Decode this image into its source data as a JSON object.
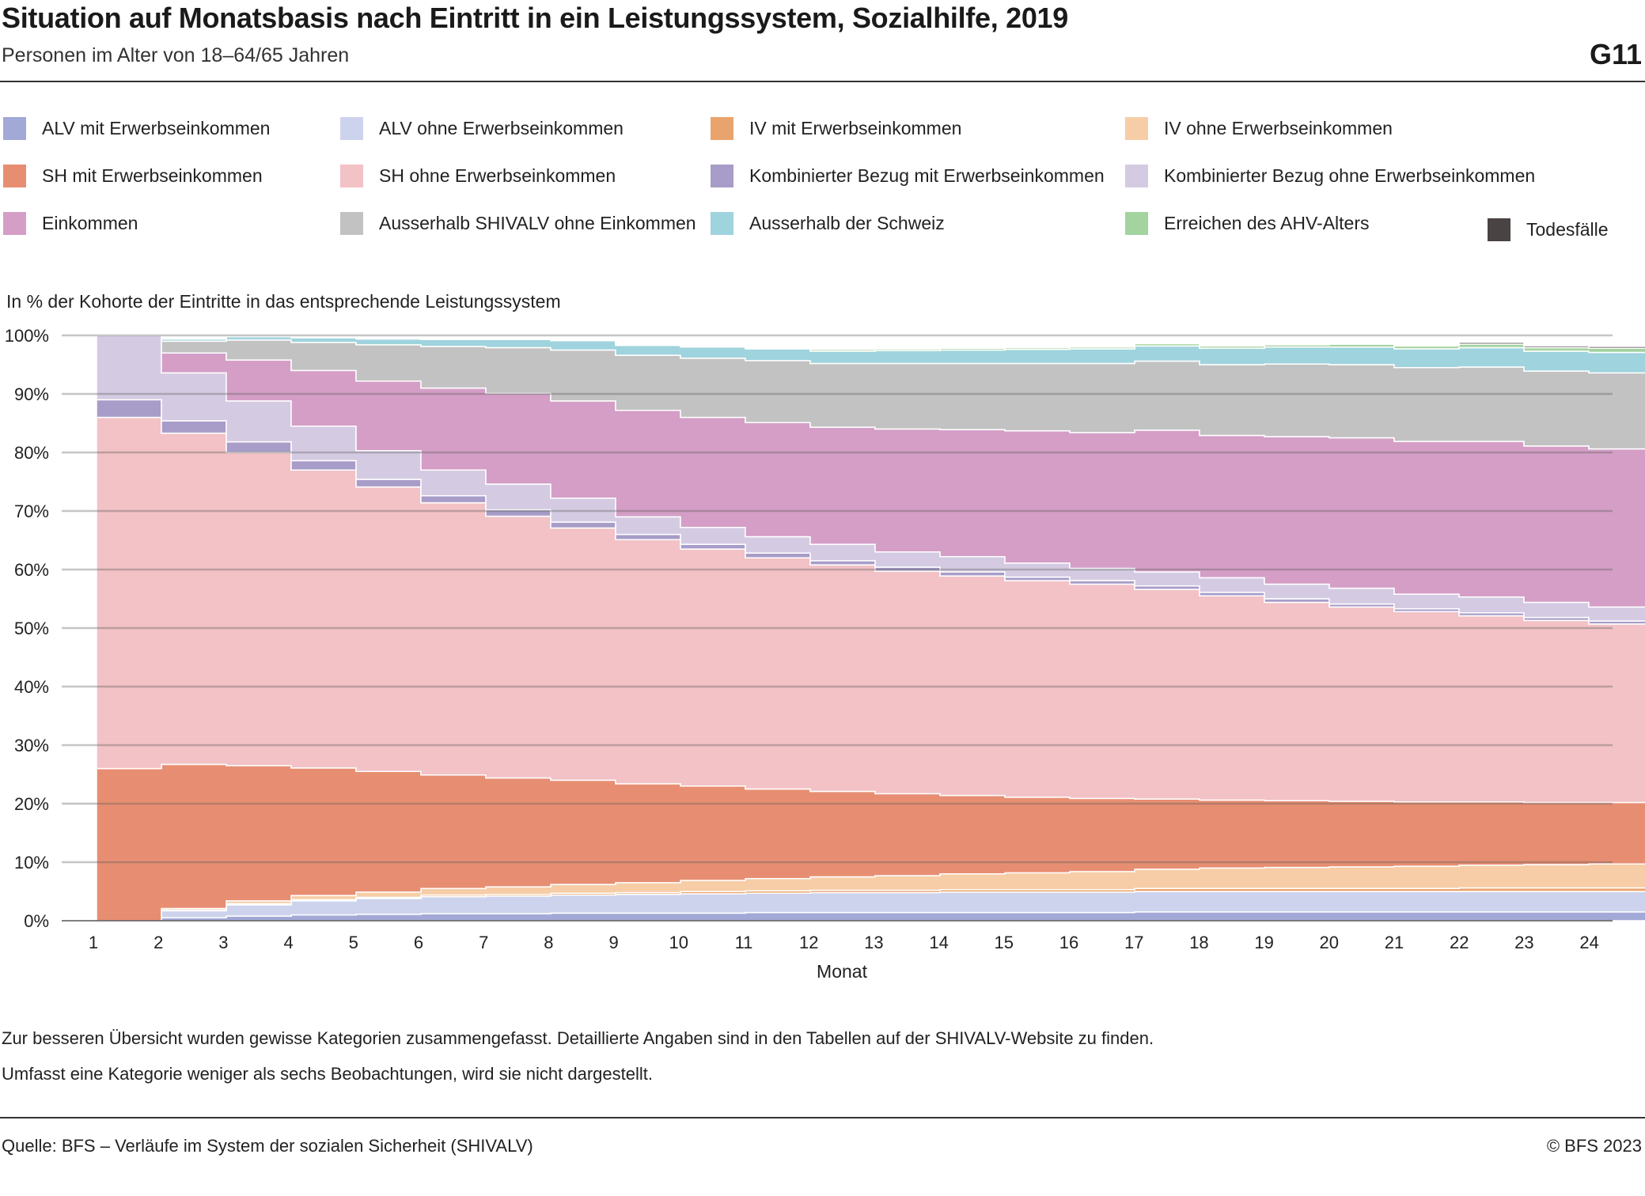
{
  "header": {
    "title": "Situation auf Monatsbasis nach Eintritt in ein Leistungssystem, Sozialhilfe, 2019",
    "subtitle": "Personen im Alter von 18–64/65 Jahren",
    "graphic_id": "G11"
  },
  "legend": [
    {
      "label": "ALV mit Erwerbseinkommen",
      "color": "#a3a9d6"
    },
    {
      "label": "ALV ohne Erwerbseinkommen",
      "color": "#cdd3ec"
    },
    {
      "label": "IV mit Erwerbseinkommen",
      "color": "#e9a46d"
    },
    {
      "label": "IV ohne Erwerbseinkommen",
      "color": "#f6cda7"
    },
    {
      "label": "SH mit Erwerbseinkommen",
      "color": "#e78e72"
    },
    {
      "label": "SH ohne Erwerbseinkommen",
      "color": "#f2c2c6"
    },
    {
      "label": "Kombinierter Bezug mit Erwerbseinkommen",
      "color": "#a89cc8"
    },
    {
      "label": "Kombinierter Bezug ohne Erwerbseinkommen",
      "color": "#d4cbe3"
    },
    {
      "label": "Einkommen",
      "color": "#d49ec6"
    },
    {
      "label": "Ausserhalb SHIVALV ohne Einkommen",
      "color": "#c2c2c2"
    },
    {
      "label": "Ausserhalb der Schweiz",
      "color": "#9fd3dd"
    },
    {
      "label": "Erreichen des AHV-Alters",
      "color": "#a3d39f"
    },
    {
      "label": "Todesfälle",
      "color": "#4a4343"
    }
  ],
  "y_axis_title": "In % der Kohorte der Eintritte in das entsprechende Leistungssystem",
  "chart_data": {
    "type": "area",
    "stacked": true,
    "step": true,
    "xlabel": "Monat",
    "ylabel": "In % der Kohorte der Eintritte in das entsprechende Leistungssystem",
    "ylim": [
      0,
      100
    ],
    "y_ticks": [
      "0%",
      "10%",
      "20%",
      "30%",
      "40%",
      "50%",
      "60%",
      "70%",
      "80%",
      "90%",
      "100%"
    ],
    "x": [
      1,
      2,
      3,
      4,
      5,
      6,
      7,
      8,
      9,
      10,
      11,
      12,
      13,
      14,
      15,
      16,
      17,
      18,
      19,
      20,
      21,
      22,
      23,
      24
    ],
    "grid": true,
    "series": [
      {
        "name": "ALV mit Erwerbseinkommen",
        "color": "#a3a9d6",
        "values": [
          0,
          0.5,
          0.8,
          1.0,
          1.1,
          1.2,
          1.2,
          1.3,
          1.3,
          1.3,
          1.4,
          1.4,
          1.4,
          1.4,
          1.4,
          1.4,
          1.5,
          1.5,
          1.5,
          1.5,
          1.5,
          1.5,
          1.5,
          1.5
        ]
      },
      {
        "name": "ALV ohne Erwerbseinkommen",
        "color": "#cdd3ec",
        "values": [
          0,
          1.2,
          1.9,
          2.4,
          2.7,
          2.9,
          3.0,
          3.1,
          3.2,
          3.3,
          3.3,
          3.4,
          3.4,
          3.5,
          3.5,
          3.5,
          3.5,
          3.5,
          3.5,
          3.5,
          3.5,
          3.5,
          3.5,
          3.5
        ]
      },
      {
        "name": "IV mit Erwerbseinkommen",
        "color": "#e9a46d",
        "values": [
          0,
          0.1,
          0.2,
          0.2,
          0.2,
          0.3,
          0.3,
          0.3,
          0.3,
          0.4,
          0.4,
          0.4,
          0.4,
          0.4,
          0.4,
          0.4,
          0.5,
          0.5,
          0.5,
          0.5,
          0.5,
          0.6,
          0.6,
          0.6
        ]
      },
      {
        "name": "IV ohne Erwerbseinkommen",
        "color": "#f6cda7",
        "values": [
          0,
          0.3,
          0.5,
          0.7,
          0.9,
          1.1,
          1.3,
          1.5,
          1.7,
          1.9,
          2.1,
          2.3,
          2.5,
          2.7,
          2.9,
          3.1,
          3.3,
          3.5,
          3.6,
          3.7,
          3.8,
          3.9,
          4.0,
          4.1
        ]
      },
      {
        "name": "SH mit Erwerbseinkommen",
        "color": "#e78e72",
        "values": [
          26.0,
          24.6,
          23.1,
          21.8,
          20.6,
          19.4,
          18.6,
          17.8,
          16.9,
          16.1,
          15.3,
          14.6,
          14.0,
          13.4,
          12.9,
          12.5,
          12.0,
          11.6,
          11.4,
          11.2,
          11.0,
          10.8,
          10.6,
          10.5
        ]
      },
      {
        "name": "SH ohne Erwerbseinkommen",
        "color": "#f2c2c6",
        "values": [
          60.0,
          56.6,
          53.5,
          50.9,
          48.6,
          46.5,
          44.7,
          43.1,
          41.7,
          40.5,
          39.5,
          38.7,
          38.0,
          37.5,
          37.0,
          36.6,
          35.8,
          34.9,
          33.9,
          33.2,
          32.5,
          31.8,
          31.1,
          30.5
        ]
      },
      {
        "name": "Kombinierter Bezug mit Erwerbseinkommen",
        "color": "#a89cc8",
        "values": [
          3.0,
          2.1,
          1.8,
          1.6,
          1.3,
          1.2,
          1.1,
          1.0,
          0.9,
          0.8,
          0.8,
          0.7,
          0.7,
          0.7,
          0.6,
          0.6,
          0.6,
          0.6,
          0.6,
          0.5,
          0.5,
          0.5,
          0.5,
          0.5
        ]
      },
      {
        "name": "Kombinierter Bezug ohne Erwerbseinkommen",
        "color": "#d4cbe3",
        "values": [
          11.0,
          8.2,
          7.0,
          5.9,
          4.9,
          4.4,
          4.4,
          4.1,
          3.0,
          2.9,
          2.8,
          2.8,
          2.6,
          2.6,
          2.4,
          2.1,
          2.4,
          2.5,
          2.5,
          2.7,
          2.5,
          2.7,
          2.6,
          2.4
        ]
      },
      {
        "name": "Einkommen",
        "color": "#d49ec6",
        "values": [
          0,
          3.4,
          7.0,
          9.5,
          11.9,
          14.0,
          15.5,
          16.6,
          18.2,
          18.8,
          19.5,
          20.0,
          21.0,
          21.7,
          22.6,
          23.2,
          24.2,
          24.3,
          25.2,
          25.7,
          26.1,
          26.6,
          26.7,
          27.0
        ]
      },
      {
        "name": "Ausserhalb SHIVALV ohne Einkommen",
        "color": "#c2c2c2",
        "values": [
          0,
          2.0,
          3.4,
          4.8,
          6.2,
          7.1,
          7.8,
          8.7,
          9.4,
          10.1,
          10.6,
          10.9,
          11.2,
          11.3,
          11.5,
          11.8,
          11.8,
          12.1,
          12.4,
          12.5,
          12.6,
          12.7,
          12.8,
          13.0
        ]
      },
      {
        "name": "Ausserhalb der Schweiz",
        "color": "#9fd3dd",
        "values": [
          0,
          0.4,
          0.6,
          0.8,
          1.0,
          1.2,
          1.4,
          1.6,
          1.7,
          1.9,
          2.0,
          2.1,
          2.2,
          2.3,
          2.4,
          2.5,
          2.6,
          2.8,
          2.9,
          3.0,
          3.2,
          3.3,
          3.4,
          3.5
        ]
      },
      {
        "name": "Erreichen des AHV-Alters",
        "color": "#a3d39f",
        "values": [
          0,
          0,
          0,
          0.1,
          0.1,
          0.1,
          0.1,
          0.2,
          0.2,
          0.2,
          0.2,
          0.3,
          0.3,
          0.3,
          0.3,
          0.3,
          0.4,
          0.4,
          0.4,
          0.5,
          0.5,
          0.6,
          0.6,
          0.7
        ]
      },
      {
        "name": "Todesfälle",
        "color": "#4a4343",
        "values": [
          0,
          0,
          0,
          0,
          0,
          0,
          0,
          0,
          0,
          0,
          0.1,
          0.1,
          0.1,
          0.1,
          0.1,
          0.1,
          0.1,
          0.2,
          0.2,
          0.2,
          0.2,
          0.3,
          0.3,
          0.3
        ]
      }
    ]
  },
  "notes": [
    "Zur besseren Übersicht wurden gewisse Kategorien zusammengefasst. Detaillierte Angaben sind in den Tabellen auf der SHIVALV-Website zu finden.",
    "Umfasst eine Kategorie weniger als sechs Beobachtungen, wird sie nicht dargestellt."
  ],
  "footer": {
    "source": "Quelle: BFS – Verläufe im System der sozialen Sicherheit (SHIVALV)",
    "copyright": "© BFS 2023"
  }
}
